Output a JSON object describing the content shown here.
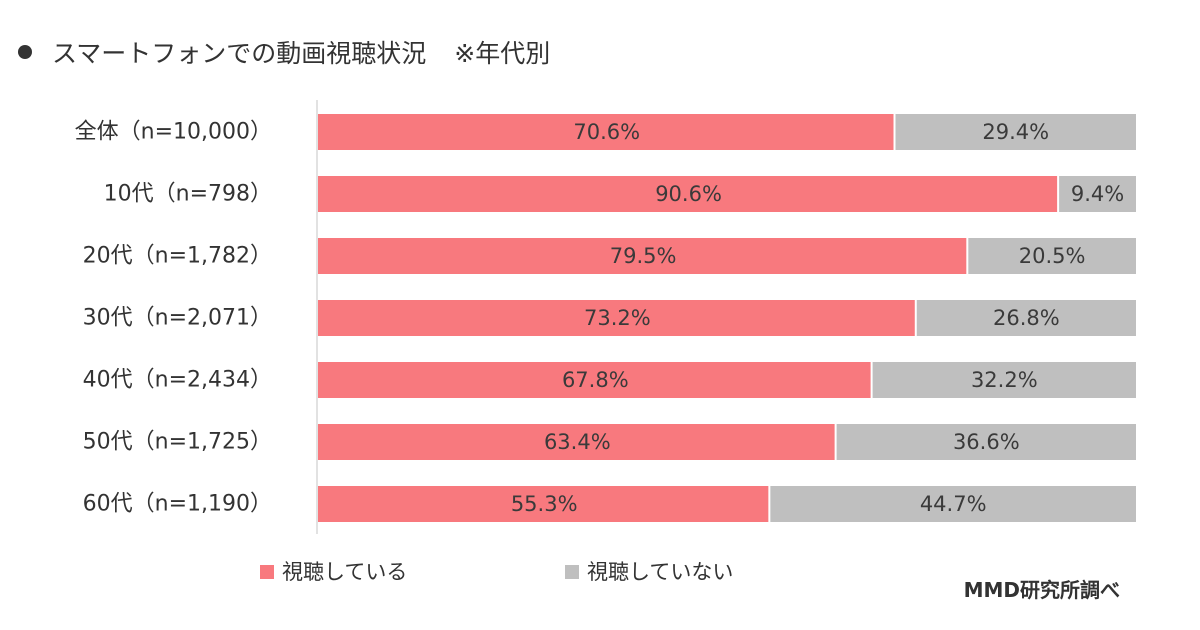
{
  "title": "スマートフォンでの動画視聴状況",
  "title_note": "※年代別",
  "source": "MMD研究所調べ",
  "colors": {
    "watching": "#F8797E",
    "not_watching": "#BFBFBF",
    "axis": "#D9D9D9",
    "text": "#333333",
    "bar_label": "#3A3A3A"
  },
  "chart_data": {
    "type": "bar",
    "orientation": "horizontal",
    "stacked": true,
    "percent_stacked": true,
    "categories": [
      "全体（n=10,000）",
      "10代（n=798）",
      "20代（n=1,782）",
      "30代（n=2,071）",
      "40代（n=2,434）",
      "50代（n=1,725）",
      "60代（n=1,190）"
    ],
    "series": [
      {
        "name": "視聴している",
        "values": [
          70.6,
          90.6,
          79.5,
          73.2,
          67.8,
          63.4,
          55.3
        ],
        "labels": [
          "70.6%",
          "90.6%",
          "79.5%",
          "73.2%",
          "67.8%",
          "63.4%",
          "55.3%"
        ]
      },
      {
        "name": "視聴していない",
        "values": [
          29.4,
          9.4,
          20.5,
          26.8,
          32.2,
          36.6,
          44.7
        ],
        "labels": [
          "29.4%",
          "9.4%",
          "20.5%",
          "26.8%",
          "32.2%",
          "36.6%",
          "44.7%"
        ]
      }
    ],
    "xlim": [
      0,
      100
    ],
    "grid": false,
    "legend_position": "bottom"
  }
}
